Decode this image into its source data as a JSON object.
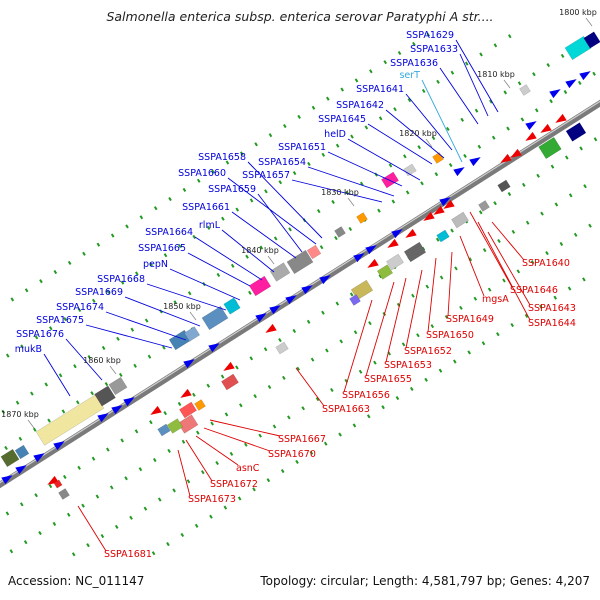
{
  "title": "Salmonella enterica subsp. enterica serovar Paratyphi A str....",
  "footer": {
    "accession": "Accession: NC_011147",
    "topology": "Topology: circular; Length: 4,581,797 bp; Genes: 4,207"
  },
  "colors": {
    "forward_label": "#0000dd",
    "reverse_label": "#dd0000",
    "rna_label": "#33aadd",
    "backbone": "#7a7a7a",
    "tick_dot": "#229922",
    "forward_arrow": "#0000ee",
    "reverse_arrow": "#ee0000"
  },
  "ruler": [
    "1800 kbp",
    "1810 kbp",
    "1820 kbp",
    "1830 kbp",
    "1840 kbp",
    "1850 kbp",
    "1860 kbp",
    "1870 kbp"
  ],
  "forward_genes": [
    "SSPA1629",
    "SSPA1633",
    "SSPA1636",
    "serT",
    "SSPA1641",
    "SSPA1642",
    "SSPA1645",
    "helD",
    "SSPA1651",
    "SSPA1654",
    "SSPA1657",
    "SSPA1658",
    "SSPA1660",
    "SSPA1659",
    "SSPA1661",
    "rlmL",
    "SSPA1664",
    "SSPA1665",
    "pepN",
    "SSPA1668",
    "SSPA1669",
    "SSPA1674",
    "SSPA1675",
    "SSPA1676",
    "mukB"
  ],
  "reverse_genes": [
    "SSPA1640",
    "SSPA1646",
    "SSPA1643",
    "SSPA1644",
    "mgsA",
    "SSPA1649",
    "SSPA1650",
    "SSPA1652",
    "SSPA1653",
    "SSPA1655",
    "SSPA1656",
    "SSPA1663",
    "SSPA1667",
    "SSPA1670",
    "asnC",
    "SSPA1672",
    "SSPA1673",
    "SSPA1681"
  ]
}
